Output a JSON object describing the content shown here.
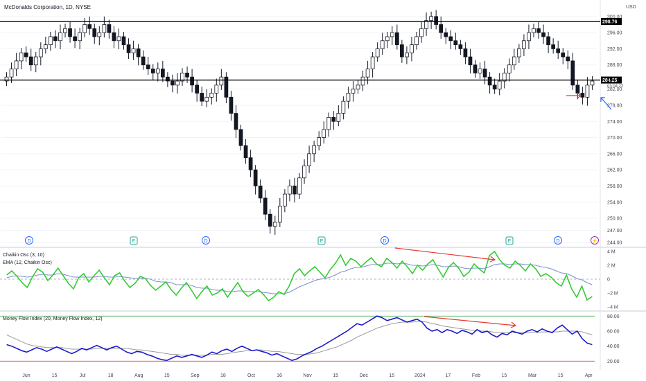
{
  "chart_data": [
    {
      "type": "candlestick",
      "title": "McDonalds Corporation, 1D, NYSE",
      "currency": "USD",
      "y_ticks": [
        "244.00",
        "247.00",
        "250.00",
        "254.00",
        "258.00",
        "262.00",
        "266.00",
        "270.00",
        "274.00",
        "278.00",
        "282.00",
        "288.00",
        "292.00",
        "296.00",
        "300.00"
      ],
      "ylim": [
        244,
        301
      ],
      "x_ticks": [
        "Jun",
        "15",
        "Jul",
        "18",
        "Aug",
        "15",
        "Sep",
        "18",
        "Oct",
        "16",
        "Nov",
        "15",
        "Dec",
        "15",
        "2024",
        "17",
        "Feb",
        "15",
        "Mar",
        "15",
        "Apr"
      ],
      "horizontal_levels": [
        {
          "value": 298.76,
          "label": "298.76"
        },
        {
          "value": 284.25,
          "label": "284.25"
        }
      ],
      "last_price": "283.97",
      "countdown": "03:04:22",
      "events": [
        {
          "symbol": "D",
          "x_label": "Jun"
        },
        {
          "symbol": "E",
          "x_label": "Jul 18"
        },
        {
          "symbol": "D",
          "x_label": "Aug 15"
        },
        {
          "symbol": "E",
          "x_label": "Oct 16"
        },
        {
          "symbol": "D",
          "x_label": "Nov 15"
        },
        {
          "symbol": "E",
          "x_label": "Feb"
        },
        {
          "symbol": "D",
          "x_label": "Mar"
        },
        {
          "symbol": "⚡",
          "x_label": "Mar 15"
        }
      ],
      "close_series": [
        285,
        287,
        289,
        291,
        290,
        288,
        290,
        292,
        293,
        295,
        294,
        296,
        297,
        295,
        294,
        296,
        298,
        297,
        295,
        296,
        298,
        296,
        294,
        295,
        293,
        291,
        292,
        290,
        288,
        287,
        286,
        287,
        285,
        284,
        283,
        284,
        286,
        285,
        283,
        281,
        279,
        280,
        281,
        283,
        285,
        280,
        276,
        272,
        268,
        265,
        262,
        258,
        255,
        251,
        248,
        249,
        253,
        256,
        258,
        256,
        260,
        263,
        266,
        268,
        270,
        272,
        275,
        274,
        276,
        279,
        281,
        282,
        283,
        285,
        287,
        290,
        292,
        294,
        295,
        296,
        293,
        290,
        291,
        293,
        295,
        297,
        299,
        300,
        298,
        296,
        295,
        294,
        293,
        292,
        290,
        288,
        286,
        287,
        285,
        283,
        282,
        284,
        286,
        288,
        290,
        292,
        294,
        296,
        297,
        296,
        295,
        293,
        292,
        291,
        290,
        289,
        283,
        281,
        280,
        283,
        284
      ]
    },
    {
      "type": "line",
      "title": "Chaikin Osc (3, 10)",
      "subtitle": "EMA (12, Chaikin Osc)",
      "y_ticks": [
        "4 M",
        "2 M",
        "0",
        "−2 M",
        "−4 M"
      ],
      "ylim": [
        -4,
        4
      ],
      "series": [
        {
          "name": "Chaikin Osc",
          "color": "#33cc33",
          "values": [
            0.6,
            1.2,
            0.4,
            -0.5,
            -1.2,
            0.3,
            1.5,
            1.0,
            -0.2,
            0.6,
            1.6,
            0.5,
            -0.6,
            -1.4,
            0.2,
            0.8,
            -0.4,
            0.5,
            1.3,
            0.2,
            -0.8,
            0.5,
            0.9,
            -0.3,
            -1.2,
            -0.6,
            0.4,
            0.1,
            -0.9,
            -1.6,
            -1.0,
            -0.4,
            -1.5,
            -2.3,
            -1.3,
            -0.5,
            -1.6,
            -2.8,
            -1.8,
            -1.0,
            -2.3,
            -2.0,
            -1.4,
            -2.6,
            -1.5,
            -0.5,
            -1.8,
            -2.5,
            -2.0,
            -1.5,
            -2.2,
            -3.1,
            -2.6,
            -1.8,
            -2.2,
            -1.0,
            0.8,
            1.5,
            0.5,
            1.2,
            1.8,
            1.0,
            0.2,
            1.4,
            2.3,
            3.5,
            2.0,
            3.0,
            2.6,
            1.8,
            2.5,
            3.1,
            2.2,
            1.8,
            3.0,
            2.4,
            1.6,
            2.6,
            1.8,
            0.8,
            2.0,
            1.3,
            2.2,
            2.8,
            1.5,
            0.3,
            1.7,
            2.4,
            1.6,
            0.4,
            1.0,
            2.2,
            1.5,
            0.9,
            3.4,
            4.0,
            2.8,
            2.0,
            1.6,
            2.6,
            2.0,
            1.2,
            2.2,
            1.5,
            0.4,
            0.8,
            0.3,
            -0.5,
            -1.0,
            0.6,
            -1.4,
            -2.6,
            -1.0,
            -3.0,
            -2.5
          ]
        },
        {
          "name": "EMA",
          "color": "#7b8fd1",
          "values": [
            0.2,
            0.4,
            0.5,
            0.4,
            0.3,
            0.4,
            0.6,
            0.7,
            0.6,
            0.6,
            0.8,
            0.7,
            0.5,
            0.3,
            0.3,
            0.3,
            0.3,
            0.3,
            0.4,
            0.4,
            0.3,
            0.3,
            0.4,
            0.3,
            0.2,
            0.1,
            0.1,
            0.1,
            0.0,
            -0.3,
            -0.4,
            -0.4,
            -0.5,
            -0.8,
            -0.8,
            -0.8,
            -0.9,
            -1.2,
            -1.3,
            -1.3,
            -1.5,
            -1.6,
            -1.6,
            -1.8,
            -1.8,
            -1.7,
            -1.7,
            -1.8,
            -1.8,
            -1.8,
            -1.9,
            -2.0,
            -2.1,
            -2.1,
            -2.1,
            -1.9,
            -1.5,
            -1.1,
            -0.8,
            -0.5,
            -0.2,
            0.0,
            0.1,
            0.3,
            0.6,
            1.0,
            1.2,
            1.5,
            1.7,
            1.7,
            1.9,
            2.1,
            2.1,
            2.1,
            2.3,
            2.3,
            2.2,
            2.3,
            2.2,
            2.0,
            2.0,
            1.9,
            2.0,
            2.1,
            2.0,
            1.8,
            1.8,
            1.9,
            1.8,
            1.6,
            1.5,
            1.6,
            1.6,
            1.5,
            1.8,
            2.1,
            2.2,
            2.2,
            2.1,
            2.2,
            2.2,
            2.1,
            2.1,
            2.0,
            1.8,
            1.7,
            1.5,
            1.2,
            0.9,
            0.8,
            0.5,
            0.1,
            -0.1,
            -0.5,
            -0.8
          ]
        }
      ],
      "annotation": "divergence arrow"
    },
    {
      "type": "line",
      "title": "Money Flow Index (20, Money Flow Index, 12)",
      "y_ticks": [
        "80.00",
        "60.00",
        "40.00",
        "20.00"
      ],
      "ylim": [
        12,
        84
      ],
      "reference_lines": [
        80,
        20
      ],
      "series": [
        {
          "name": "Money Flow Index",
          "color": "#1a1acc",
          "values": [
            42,
            40,
            37,
            34,
            32,
            35,
            38,
            36,
            33,
            36,
            39,
            36,
            33,
            30,
            33,
            37,
            35,
            38,
            41,
            38,
            35,
            38,
            40,
            36,
            32,
            30,
            33,
            32,
            29,
            27,
            24,
            22,
            21,
            24,
            27,
            25,
            27,
            29,
            27,
            25,
            28,
            32,
            30,
            34,
            36,
            33,
            37,
            40,
            37,
            34,
            35,
            33,
            31,
            28,
            30,
            27,
            24,
            21,
            23,
            27,
            30,
            33,
            37,
            40,
            44,
            48,
            52,
            56,
            60,
            65,
            70,
            68,
            72,
            76,
            80,
            78,
            74,
            76,
            78,
            75,
            72,
            74,
            76,
            72,
            64,
            60,
            62,
            58,
            62,
            60,
            57,
            61,
            59,
            56,
            62,
            58,
            60,
            55,
            52,
            57,
            55,
            60,
            58,
            56,
            60,
            62,
            59,
            63,
            60,
            58,
            64,
            68,
            62,
            56,
            60,
            50,
            44,
            42
          ]
        },
        {
          "name": "Signal",
          "color": "#999999",
          "values": [
            55,
            52,
            49,
            46,
            43,
            41,
            40,
            39,
            38,
            38,
            38,
            38,
            37,
            36,
            36,
            36,
            36,
            36,
            37,
            37,
            37,
            37,
            37,
            37,
            37,
            36,
            35,
            35,
            34,
            33,
            32,
            31,
            30,
            29,
            29,
            28,
            28,
            28,
            28,
            28,
            28,
            29,
            29,
            29,
            30,
            31,
            32,
            33,
            34,
            34,
            35,
            35,
            34,
            33,
            33,
            32,
            31,
            30,
            29,
            29,
            29,
            30,
            31,
            33,
            35,
            37,
            39,
            42,
            45,
            48,
            52,
            55,
            58,
            61,
            64,
            66,
            68,
            70,
            71,
            72,
            72,
            72,
            73,
            73,
            72,
            70,
            69,
            67,
            66,
            65,
            64,
            63,
            62,
            61,
            61,
            60,
            60,
            59,
            58,
            58,
            58,
            58,
            58,
            58,
            58,
            58,
            58,
            59,
            59,
            59,
            59,
            60,
            60,
            60,
            60,
            59,
            57,
            55
          ]
        }
      ],
      "annotation": "divergence arrow"
    }
  ]
}
